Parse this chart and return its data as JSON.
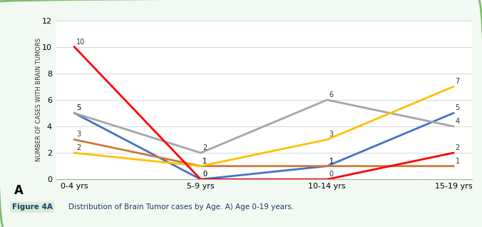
{
  "x_labels": [
    "0-4 yrs",
    "5-9 yrs",
    "10-14 yrs",
    "15-19 yrs"
  ],
  "x_positions": [
    0,
    1,
    2,
    3
  ],
  "series": [
    {
      "color": "#4472C4",
      "values": [
        5,
        0,
        1,
        5
      ],
      "labels": [
        5,
        0,
        1,
        5
      ]
    },
    {
      "color": "#A5A5A5",
      "values": [
        5,
        2,
        6,
        4
      ],
      "labels": [
        5,
        2,
        6,
        4
      ]
    },
    {
      "color": "#C97B3A",
      "values": [
        3,
        1,
        1,
        1
      ],
      "labels": [
        3,
        1,
        1,
        1
      ]
    },
    {
      "color": "#FFC000",
      "values": [
        2,
        1,
        3,
        7
      ],
      "labels": [
        2,
        1,
        3,
        7
      ]
    },
    {
      "color": "#FF0000",
      "values": [
        10,
        0,
        0,
        2
      ],
      "labels": [
        10,
        0,
        0,
        2
      ]
    }
  ],
  "label_offsets": [
    [
      [
        2,
        3
      ],
      [
        2,
        3
      ],
      [
        2,
        3
      ],
      [
        2,
        3
      ]
    ],
    [
      [
        2,
        3
      ],
      [
        2,
        3
      ],
      [
        2,
        3
      ],
      [
        2,
        3
      ]
    ],
    [
      [
        2,
        3
      ],
      [
        2,
        3
      ],
      [
        2,
        3
      ],
      [
        2,
        3
      ]
    ],
    [
      [
        2,
        3
      ],
      [
        2,
        3
      ],
      [
        2,
        3
      ],
      [
        2,
        3
      ]
    ],
    [
      [
        2,
        3
      ],
      [
        2,
        3
      ],
      [
        2,
        3
      ],
      [
        2,
        3
      ]
    ]
  ],
  "ylabel": "NUMBER OF CASES WITH BRAIN TUMORS",
  "ylim": [
    0,
    12
  ],
  "yticks": [
    0,
    2,
    4,
    6,
    8,
    10,
    12
  ],
  "corner_label": "A",
  "figure_label": "Figure 4A",
  "caption": "Distribution of Brain Tumor cases by Age. A) Age 0-19 years.",
  "bg_color": "#FFFFFF",
  "outer_bg": "#F2F8F2",
  "grid_color": "#D0D0D0",
  "border_color": "#7DBB6A",
  "caption_bg": "#D8EDD8",
  "line_width": 2.0,
  "marker_size": 0
}
